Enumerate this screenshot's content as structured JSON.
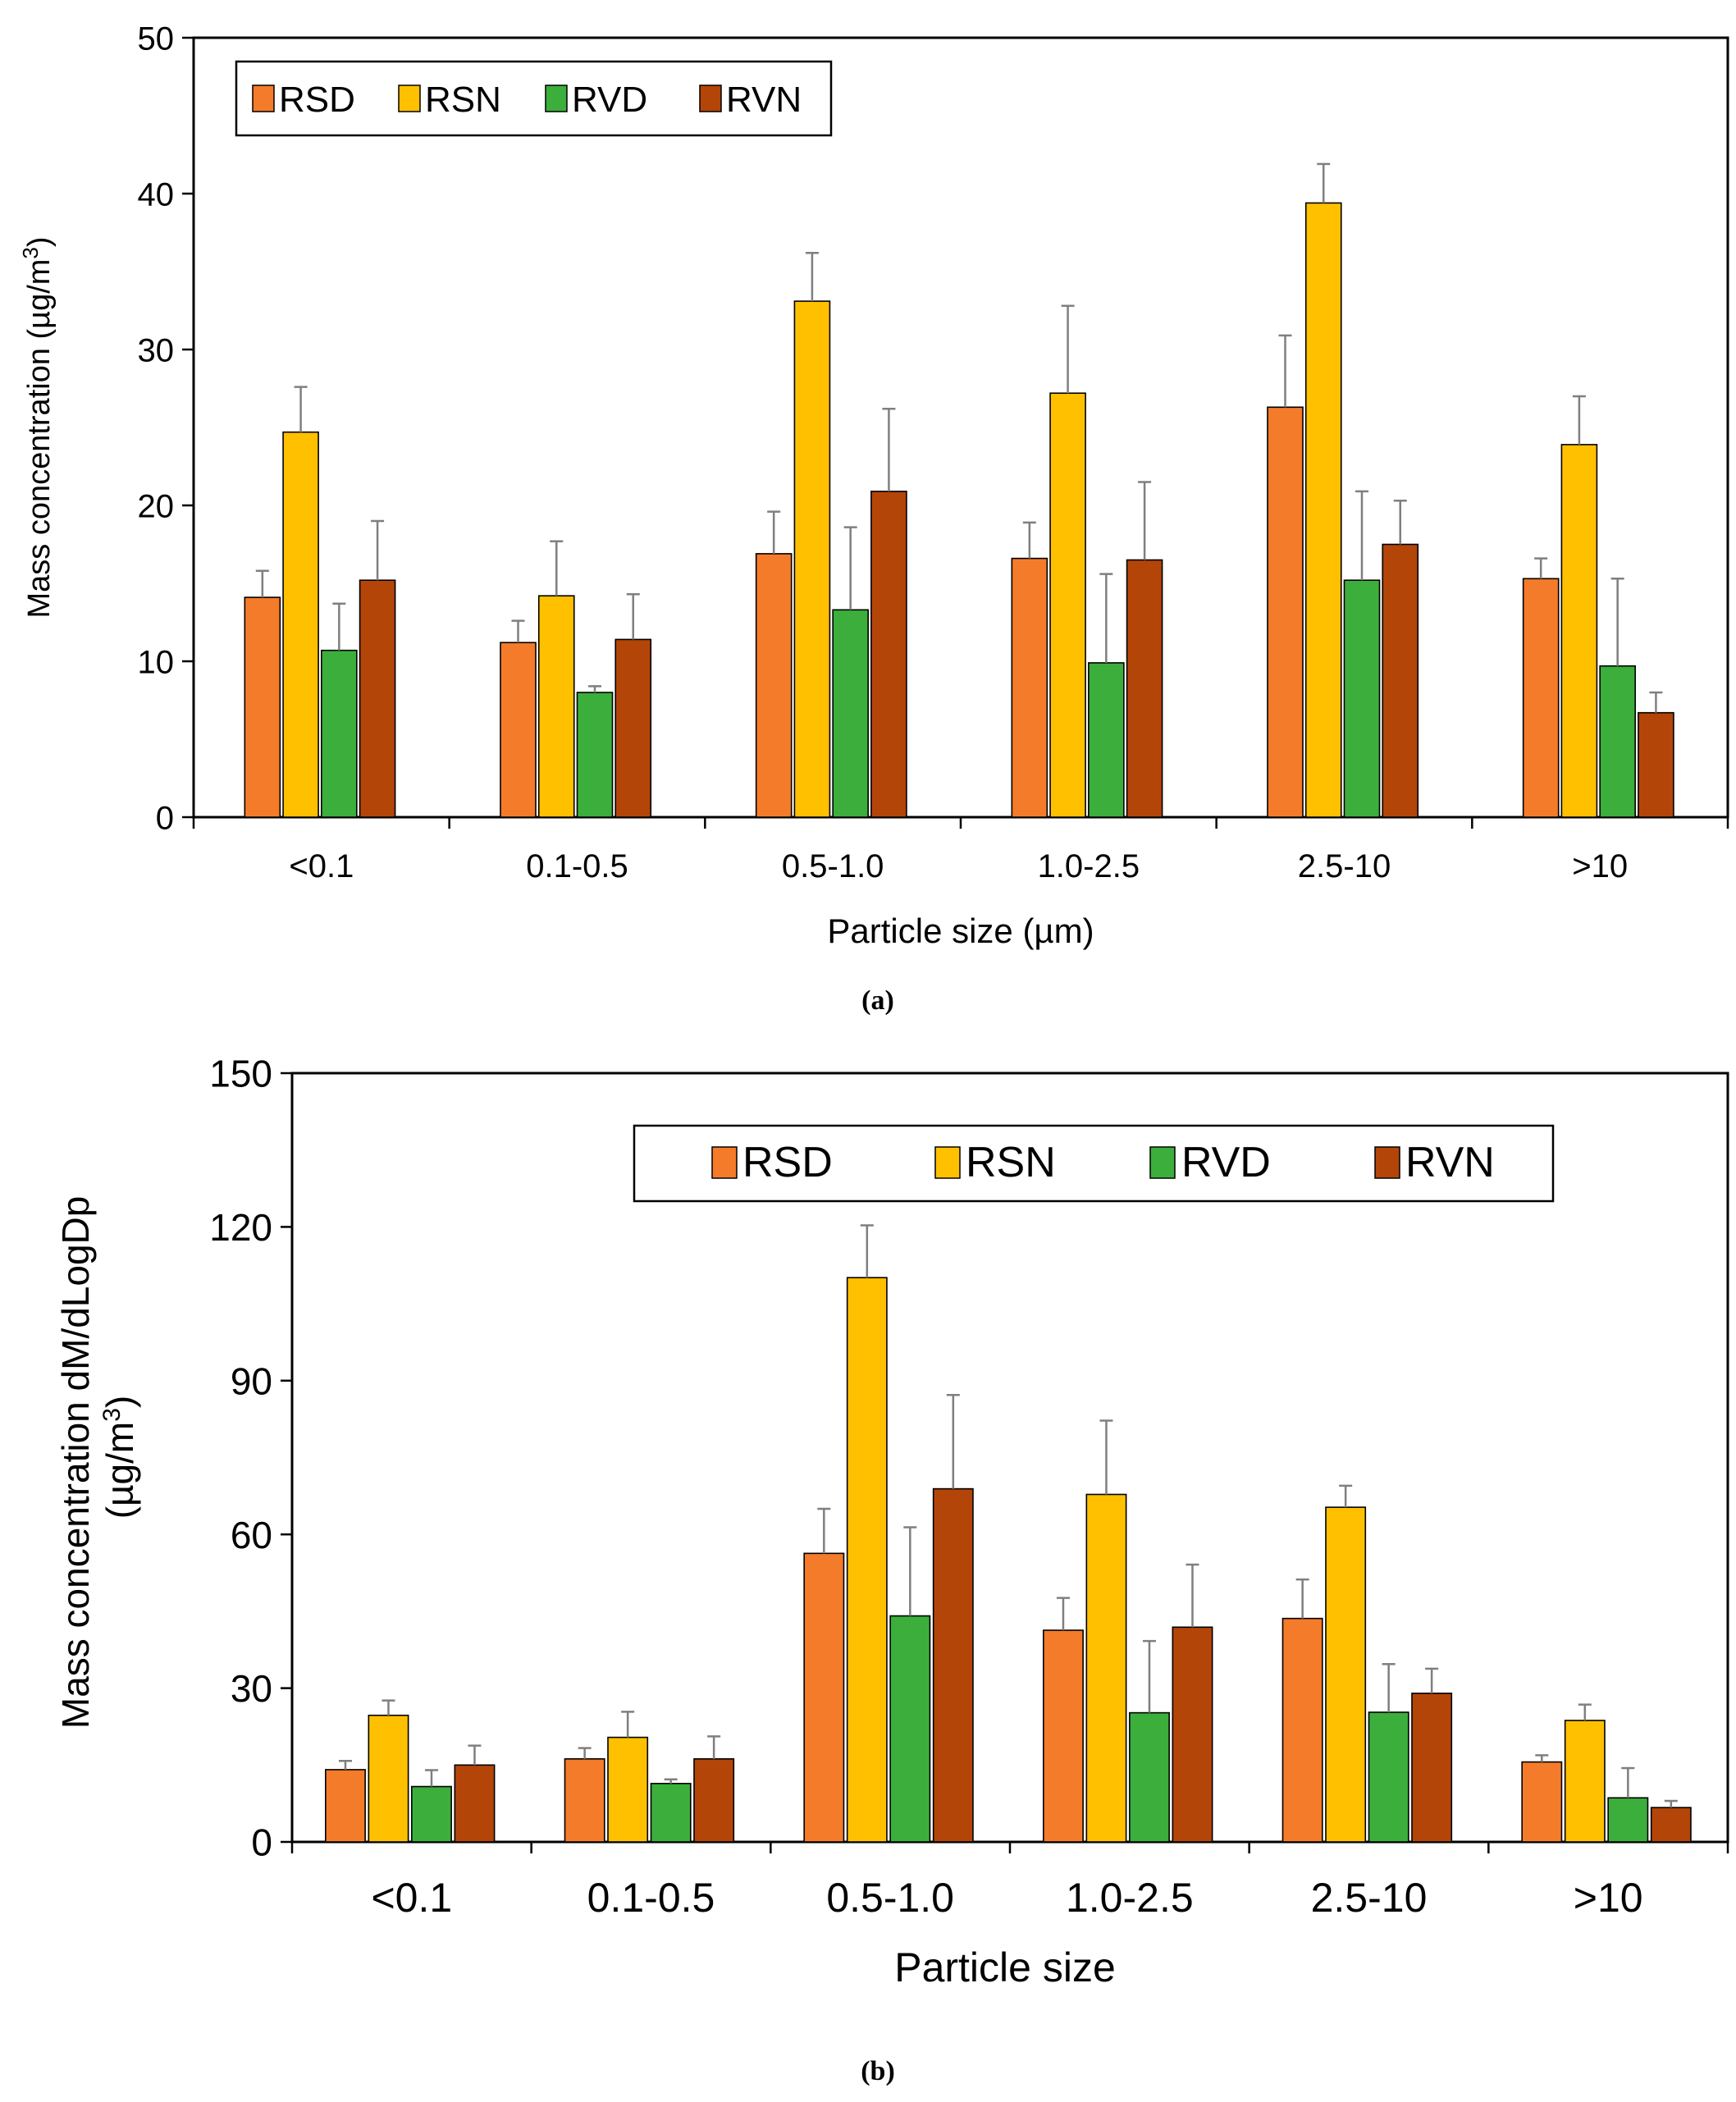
{
  "colors": {
    "RSD": "#f47b2a",
    "RSN": "#ffc000",
    "RVD": "#3cae3c",
    "RVN": "#b34509",
    "error": "#7f7f7f"
  },
  "chart_data": [
    {
      "type": "bar",
      "caption": "(a)",
      "categories": [
        "<0.1",
        "0.1-0.5",
        "0.5-1.0",
        "1.0-2.5",
        "2.5-10",
        ">10"
      ],
      "series": [
        {
          "name": "RSD",
          "values": [
            14.1,
            11.2,
            16.9,
            16.6,
            26.3,
            15.3
          ],
          "errors": [
            1.7,
            1.4,
            2.7,
            2.3,
            4.6,
            1.3
          ]
        },
        {
          "name": "RSN",
          "values": [
            24.7,
            14.2,
            33.1,
            27.2,
            39.4,
            23.9
          ],
          "errors": [
            2.9,
            3.5,
            3.1,
            5.6,
            2.5,
            3.1
          ]
        },
        {
          "name": "RVD",
          "values": [
            10.7,
            8.0,
            13.3,
            9.9,
            15.2,
            9.7
          ],
          "errors": [
            3.0,
            0.4,
            5.3,
            5.7,
            5.7,
            5.6
          ]
        },
        {
          "name": "RVN",
          "values": [
            15.2,
            11.4,
            20.9,
            16.5,
            17.5,
            6.7
          ],
          "errors": [
            3.8,
            2.9,
            5.3,
            5.0,
            2.8,
            1.3
          ]
        }
      ],
      "xlabel": "Particle size (µm)",
      "ylabel_main": "Mass concentration (µg/m",
      "ylabel_sup": "3",
      "ylabel_end": ")",
      "ylim": [
        0,
        50
      ],
      "yticks": [
        0,
        10,
        20,
        30,
        40,
        50
      ],
      "legend_position": "top-left"
    },
    {
      "type": "bar",
      "caption": "(b)",
      "categories": [
        "<0.1",
        "0.1-0.5",
        "0.5-1.0",
        "1.0-2.5",
        "2.5-10",
        ">10"
      ],
      "series": [
        {
          "name": "RSD",
          "values": [
            14.1,
            16.2,
            56.3,
            41.3,
            43.6,
            15.6
          ],
          "errors": [
            1.7,
            2.1,
            8.7,
            6.3,
            7.6,
            1.3
          ]
        },
        {
          "name": "RSN",
          "values": [
            24.7,
            20.4,
            110.1,
            67.8,
            65.3,
            23.7
          ],
          "errors": [
            2.9,
            5.0,
            10.2,
            14.4,
            4.2,
            3.1
          ]
        },
        {
          "name": "RVD",
          "values": [
            10.8,
            11.4,
            44.1,
            25.2,
            25.3,
            8.6
          ],
          "errors": [
            3.2,
            0.8,
            17.3,
            14.0,
            9.4,
            5.8
          ]
        },
        {
          "name": "RVN",
          "values": [
            15.0,
            16.2,
            68.9,
            41.9,
            29.0,
            6.7
          ],
          "errors": [
            3.8,
            4.4,
            18.3,
            12.2,
            4.8,
            1.3
          ]
        }
      ],
      "xlabel": "Particle size",
      "ylabel_line1": "Mass concentration dM/dLogDp",
      "ylabel_line2_main": "(µg/m",
      "ylabel_sup": "3",
      "ylabel_end": ")",
      "ylim": [
        0,
        150
      ],
      "yticks": [
        0,
        30,
        60,
        90,
        120,
        150
      ],
      "legend_position": "top-right"
    }
  ]
}
